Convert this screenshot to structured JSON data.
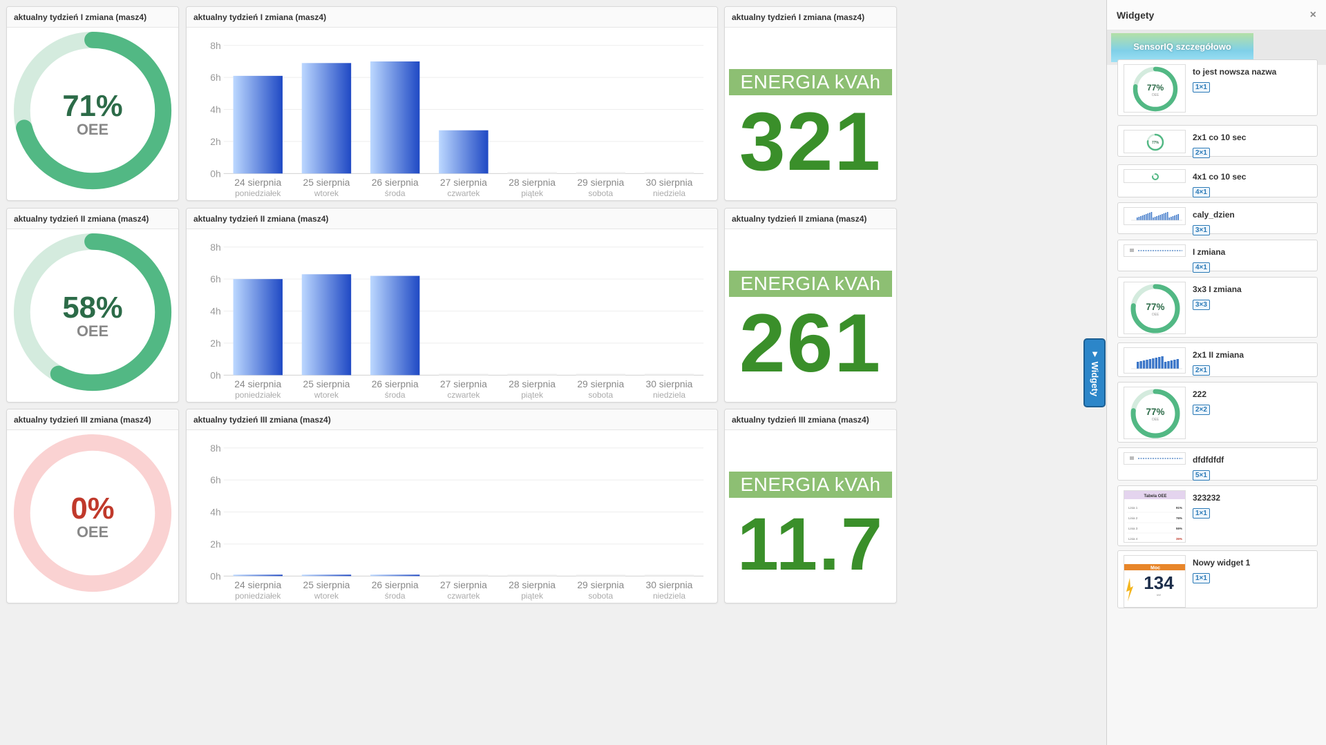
{
  "colors": {
    "green_ring": "#52b884",
    "green_light": "#cfe9db",
    "red_light": "#f8cccc",
    "red_text": "#c0392b",
    "bar_dark": "#1f49c4",
    "bar_light": "#bcd8ff",
    "energy_green": "#3a8f2a",
    "energy_label_bg": "#8dbf73"
  },
  "rows": [
    {
      "gauge": {
        "title": "aktualny tydzień I zmiana (masz4)",
        "percent": "71%",
        "value": 0.71,
        "label": "OEE",
        "color": "#52b884",
        "track": "#d4ebde",
        "text_color": "#2c6b48"
      },
      "chart": {
        "title": "aktualny tydzień I zmiana (masz4)"
      },
      "energy": {
        "title": "aktualny tydzień I zmiana (masz4)",
        "label": "ENERGIA kVAh",
        "value": "321"
      }
    },
    {
      "gauge": {
        "title": "aktualny tydzień II zmiana (masz4)",
        "percent": "58%",
        "value": 0.58,
        "label": "OEE",
        "color": "#52b884",
        "track": "#d4ebde",
        "text_color": "#2c6b48"
      },
      "chart": {
        "title": "aktualny tydzień II zmiana (masz4)"
      },
      "energy": {
        "title": "aktualny tydzień II zmiana (masz4)",
        "label": "ENERGIA kVAh",
        "value": "261"
      }
    },
    {
      "gauge": {
        "title": "aktualny tydzień III zmiana (masz4)",
        "percent": "0%",
        "value": 0.0,
        "label": "OEE",
        "color": "#e06060",
        "track": "#fad2d2",
        "text_color": "#c0392b"
      },
      "chart": {
        "title": "aktualny tydzień III zmiana (masz4)"
      },
      "energy": {
        "title": "aktualny tydzień III zmiana (masz4)",
        "label": "ENERGIA kVAh",
        "value": "11.7"
      }
    }
  ],
  "chart_data": [
    {
      "type": "bar",
      "categories": [
        "24 sierpnia",
        "25 sierpnia",
        "26 sierpnia",
        "27 sierpnia",
        "28 sierpnia",
        "29 sierpnia",
        "30 sierpnia"
      ],
      "subcategories": [
        "poniedziałek",
        "wtorek",
        "środa",
        "czwartek",
        "piątek",
        "sobota",
        "niedziela"
      ],
      "values": [
        6.1,
        6.9,
        7.0,
        2.7,
        0,
        0,
        0
      ],
      "yticks": [
        "0h",
        "2h",
        "4h",
        "6h",
        "8h"
      ],
      "ylim": [
        0,
        8
      ]
    },
    {
      "type": "bar",
      "categories": [
        "24 sierpnia",
        "25 sierpnia",
        "26 sierpnia",
        "27 sierpnia",
        "28 sierpnia",
        "29 sierpnia",
        "30 sierpnia"
      ],
      "subcategories": [
        "poniedziałek",
        "wtorek",
        "środa",
        "czwartek",
        "piątek",
        "sobota",
        "niedziela"
      ],
      "values": [
        6.0,
        6.3,
        6.2,
        0,
        0,
        0,
        0
      ],
      "yticks": [
        "0h",
        "2h",
        "4h",
        "6h",
        "8h"
      ],
      "ylim": [
        0,
        8
      ]
    },
    {
      "type": "bar",
      "categories": [
        "24 sierpnia",
        "25 sierpnia",
        "26 sierpnia",
        "27 sierpnia",
        "28 sierpnia",
        "29 sierpnia",
        "30 sierpnia"
      ],
      "subcategories": [
        "poniedziałek",
        "wtorek",
        "środa",
        "czwartek",
        "piątek",
        "sobota",
        "niedziela"
      ],
      "values": [
        0.05,
        0.05,
        0.05,
        0,
        0,
        0,
        0
      ],
      "yticks": [
        "0h",
        "2h",
        "4h",
        "6h",
        "8h"
      ],
      "ylim": [
        0,
        8
      ]
    }
  ],
  "panel": {
    "title": "Widgety",
    "close_icon": "×",
    "banner_label": "SensorIQ szczegółowo",
    "side_tab_label": "▼ Widgety",
    "items": [
      {
        "name": "to jest nowsza nazwa",
        "badge": "1×1",
        "thumb": "gauge",
        "thumb_text": "77%",
        "thumb_sub": "OEE"
      },
      {
        "name": "2x1 co 10 sec",
        "badge": "2×1",
        "thumb": "gauge-small",
        "thumb_text": "77%"
      },
      {
        "name": "4x1 co 10 sec",
        "badge": "4×1",
        "thumb": "gauge-tiny",
        "thumb_text": "77%"
      },
      {
        "name": "caly_dzien",
        "badge": "3×1",
        "thumb": "bars"
      },
      {
        "name": "I zmiana",
        "badge": "4×1",
        "thumb": "line"
      },
      {
        "name": "3x3 I zmiana",
        "badge": "3×3",
        "thumb": "gauge",
        "thumb_text": "77%",
        "thumb_sub": "OEE"
      },
      {
        "name": "2x1 II zmiana",
        "badge": "2×1",
        "thumb": "bars2"
      },
      {
        "name": "222",
        "badge": "2×2",
        "thumb": "gauge",
        "thumb_text": "77%",
        "thumb_sub": "OEE"
      },
      {
        "name": "dfdfdfdf",
        "badge": "5×1",
        "thumb": "line"
      },
      {
        "name": "323232",
        "badge": "1×1",
        "thumb": "table",
        "thumb_title": "Tabela OEE",
        "thumb_rows": [
          [
            "Linia 1",
            "91%"
          ],
          [
            "Linia 2",
            "76%"
          ],
          [
            "Linia 3",
            "55%"
          ],
          [
            "Linia 4",
            "35%"
          ]
        ]
      },
      {
        "name": "Nowy widget 1",
        "badge": "1×1",
        "thumb": "power",
        "thumb_title": "Moc",
        "thumb_value": "134",
        "thumb_unit": "kW"
      }
    ]
  }
}
